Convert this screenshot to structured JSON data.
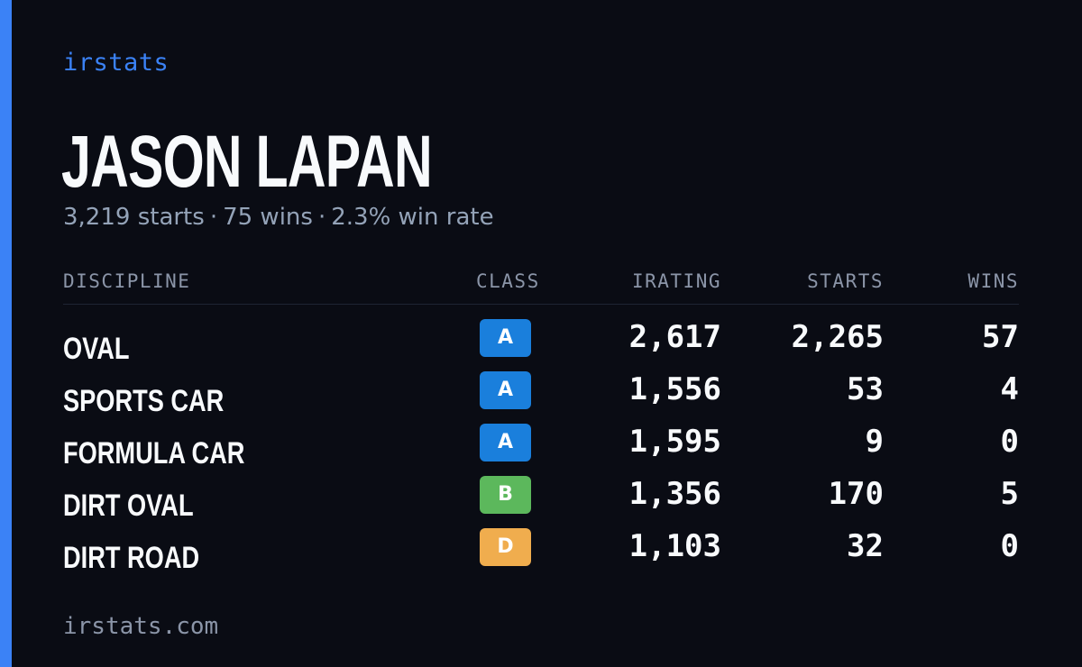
{
  "brand": "irstats",
  "driver": {
    "name": "JASON LAPAN",
    "starts": "3,219 starts",
    "wins": "75 wins",
    "win_rate": "2.3% win rate",
    "separator": "·"
  },
  "table": {
    "headers": {
      "discipline": "DISCIPLINE",
      "class": "CLASS",
      "irating": "IRATING",
      "starts": "STARTS",
      "wins": "WINS"
    },
    "rows": [
      {
        "discipline": "OVAL",
        "class": "A",
        "class_color": "#1a7fdc",
        "irating": "2,617",
        "starts": "2,265",
        "wins": "57"
      },
      {
        "discipline": "SPORTS CAR",
        "class": "A",
        "class_color": "#1a7fdc",
        "irating": "1,556",
        "starts": "53",
        "wins": "4"
      },
      {
        "discipline": "FORMULA CAR",
        "class": "A",
        "class_color": "#1a7fdc",
        "irating": "1,595",
        "starts": "9",
        "wins": "0"
      },
      {
        "discipline": "DIRT OVAL",
        "class": "B",
        "class_color": "#5cb85c",
        "irating": "1,356",
        "starts": "170",
        "wins": "5"
      },
      {
        "discipline": "DIRT ROAD",
        "class": "D",
        "class_color": "#f0ad4e",
        "irating": "1,103",
        "starts": "32",
        "wins": "0"
      }
    ]
  },
  "footer": "irstats.com",
  "colors": {
    "accent": "#3b82f6",
    "background": "#0a0c14"
  }
}
